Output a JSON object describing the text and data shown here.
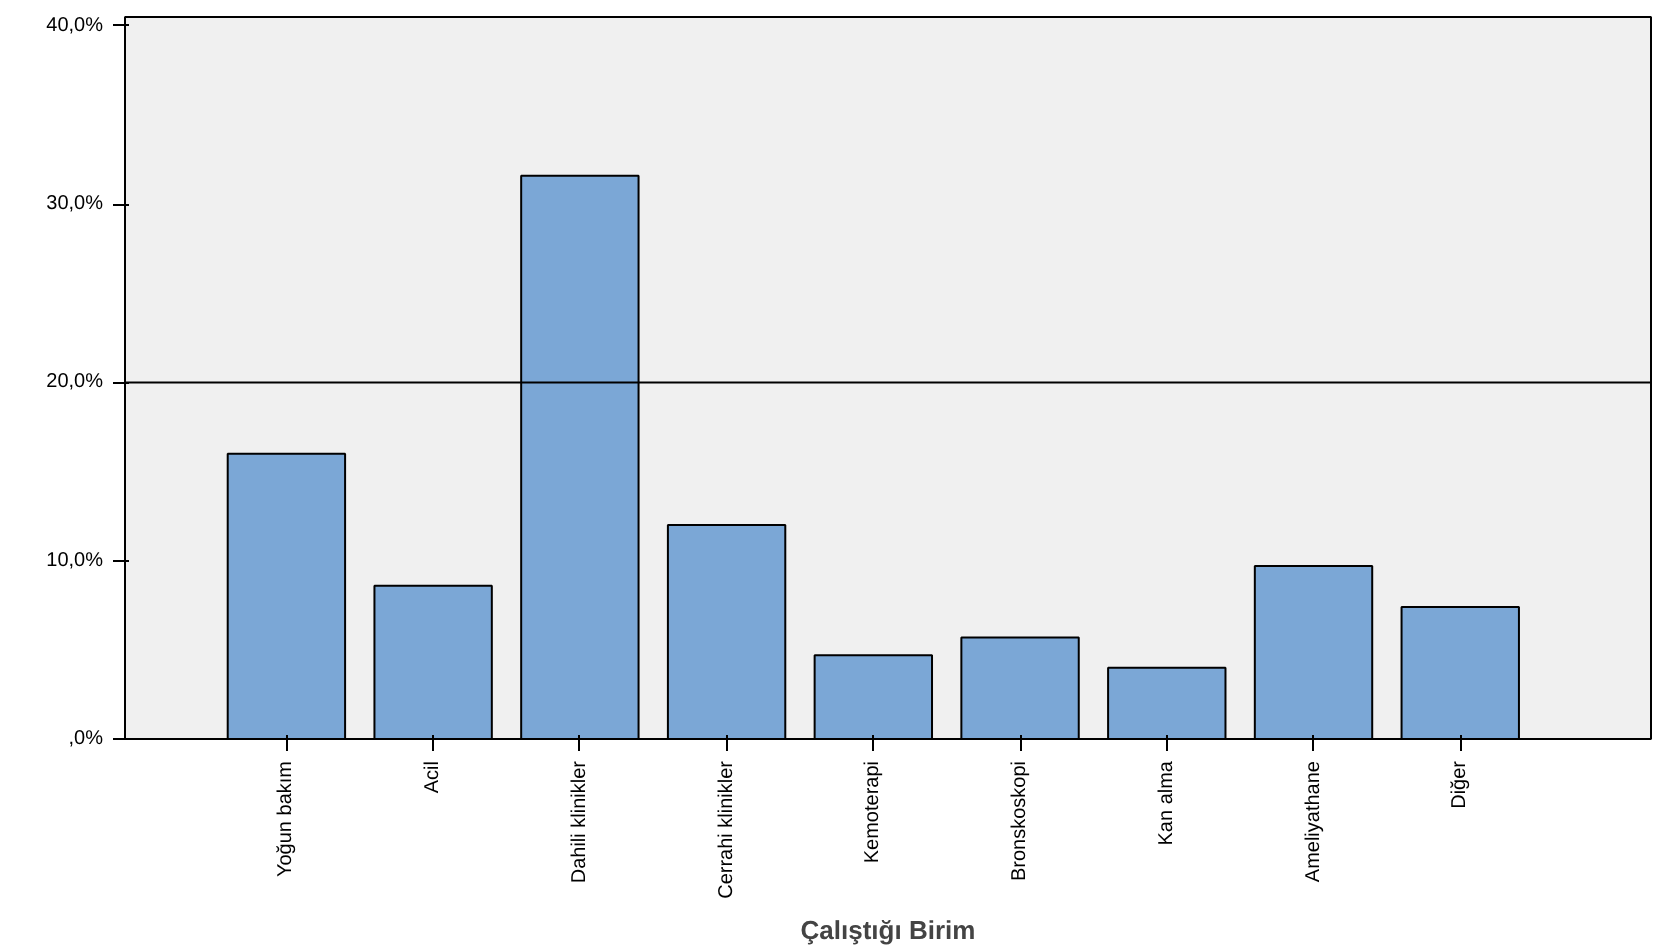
{
  "chart_data": {
    "type": "bar",
    "xlabel": "Çalıştığı Birim",
    "categories": [
      "Yoğun bakım",
      "Acil",
      "Dahili klinikler",
      "Cerrahi klinikler",
      "Kemoterapi",
      "Bronskoskopi",
      "Kan alma",
      "Ameliyathane",
      "Diğer"
    ],
    "values": [
      16.0,
      8.6,
      31.6,
      12.0,
      4.7,
      5.7,
      4.0,
      9.7,
      7.4
    ],
    "color": "#7ba7d6",
    "ylim": [
      0,
      40.5
    ],
    "yticks": [
      {
        "value": 0,
        "label": ",0%"
      },
      {
        "value": 10,
        "label": "10,0%"
      },
      {
        "value": 20,
        "label": "20,0%"
      },
      {
        "value": 30,
        "label": "30,0%"
      },
      {
        "value": 40,
        "label": "40,0%"
      }
    ],
    "grid": false,
    "ref_lines": [
      {
        "axis": "y",
        "value": 20,
        "color": "#000000"
      }
    ]
  }
}
